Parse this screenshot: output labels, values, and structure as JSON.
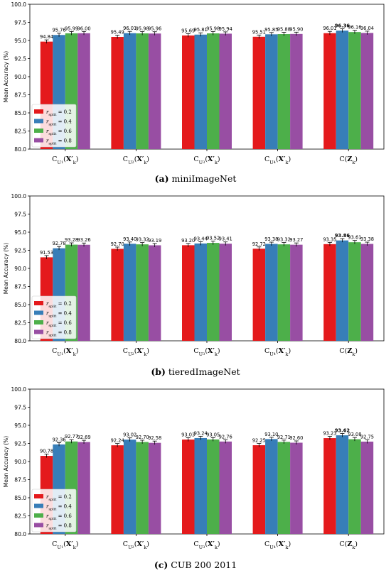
{
  "chart_data": [
    {
      "type": "bar",
      "panel_letter": "(a)",
      "caption": "miniImageNet",
      "ylabel": "Mean Accuracy (%)",
      "ylim": [
        80.0,
        100.0
      ],
      "yticks": [
        "80.0",
        "82.5",
        "85.0",
        "87.5",
        "90.0",
        "92.5",
        "95.0",
        "97.5",
        "100.0"
      ],
      "categories": [
        "C_{U1}(X'_k)",
        "C_{U2}(X'_k)",
        "C_{U3}(X'_k)",
        "C_{U4}(X'_k)",
        "C(Z_k)"
      ],
      "series": [
        {
          "name": "r_split = 0.2",
          "color": "#e41a1c",
          "values": [
            94.84,
            95.49,
            95.69,
            95.51,
            96.01
          ]
        },
        {
          "name": "r_split = 0.4",
          "color": "#377eb8",
          "values": [
            95.76,
            96.01,
            95.81,
            95.85,
            96.36
          ]
        },
        {
          "name": "r_split = 0.6",
          "color": "#4daf4a",
          "values": [
            95.99,
            95.98,
            95.98,
            95.88,
            96.16
          ]
        },
        {
          "name": "r_split = 0.8",
          "color": "#984ea3",
          "values": [
            96.0,
            95.96,
            95.94,
            95.9,
            96.04
          ]
        }
      ],
      "value_labels": [
        [
          "94.84",
          "95.49",
          "95.69",
          "95.51",
          "96.01"
        ],
        [
          "95.76",
          "96.01",
          "95.81",
          "95.85",
          "96.36"
        ],
        [
          "95.99",
          "95.98",
          "95.98",
          "95.88",
          "96.16"
        ],
        [
          "96.00",
          "95.96",
          "95.94",
          "95.90",
          "96.04"
        ]
      ],
      "best": [
        1,
        4
      ],
      "legend_position": "lower-left"
    },
    {
      "type": "bar",
      "panel_letter": "(b)",
      "caption": "tieredImageNet",
      "ylabel": "Mean Accuracy (%)",
      "ylim": [
        80.0,
        100.0
      ],
      "yticks": [
        "80.0",
        "82.5",
        "85.0",
        "87.5",
        "90.0",
        "92.5",
        "95.0",
        "97.5",
        "100.0"
      ],
      "categories": [
        "C_{U1}(X'_k)",
        "C_{U2}(X'_k)",
        "C_{U3}(X'_k)",
        "C_{U4}(X'_k)",
        "C(Z_k)"
      ],
      "series": [
        {
          "name": "r_split = 0.2",
          "color": "#e41a1c",
          "values": [
            91.53,
            92.7,
            93.2,
            92.72,
            93.35
          ]
        },
        {
          "name": "r_split = 0.4",
          "color": "#377eb8",
          "values": [
            92.78,
            93.4,
            93.44,
            93.38,
            93.86
          ]
        },
        {
          "name": "r_split = 0.6",
          "color": "#4daf4a",
          "values": [
            93.28,
            93.32,
            93.52,
            93.32,
            93.61
          ]
        },
        {
          "name": "r_split = 0.8",
          "color": "#984ea3",
          "values": [
            93.26,
            93.19,
            93.41,
            93.27,
            93.38
          ]
        }
      ],
      "value_labels": [
        [
          "91.53",
          "92.70",
          "93.20",
          "92.72",
          "93.35"
        ],
        [
          "92.78",
          "93.40",
          "93.44",
          "93.38",
          "93.86"
        ],
        [
          "93.28",
          "93.32",
          "93.52",
          "93.32",
          "93.61"
        ],
        [
          "93.26",
          "93.19",
          "93.41",
          "93.27",
          "93.38"
        ]
      ],
      "best": [
        1,
        4
      ],
      "legend_position": "lower-left"
    },
    {
      "type": "bar",
      "panel_letter": "(c)",
      "caption": "CUB 200 2011",
      "ylabel": "Mean Accuracy (%)",
      "ylim": [
        80.0,
        100.0
      ],
      "yticks": [
        "80.0",
        "82.5",
        "85.0",
        "87.5",
        "90.0",
        "92.5",
        "95.0",
        "97.5",
        "100.0"
      ],
      "categories": [
        "C_{U1}(X'_k)",
        "C_{U2}(X'_k)",
        "C_{U3}(X'_k)",
        "C_{U4}(X'_k)",
        "C(Z_k)"
      ],
      "series": [
        {
          "name": "r_split = 0.2",
          "color": "#e41a1c",
          "values": [
            90.78,
            92.24,
            93.03,
            92.25,
            93.23
          ]
        },
        {
          "name": "r_split = 0.4",
          "color": "#377eb8",
          "values": [
            92.36,
            93.02,
            93.24,
            93.1,
            93.62
          ]
        },
        {
          "name": "r_split = 0.6",
          "color": "#4daf4a",
          "values": [
            92.77,
            92.7,
            93.05,
            92.71,
            93.08
          ]
        },
        {
          "name": "r_split = 0.8",
          "color": "#984ea3",
          "values": [
            92.69,
            92.58,
            92.76,
            92.6,
            92.75
          ]
        }
      ],
      "value_labels": [
        [
          "90.78",
          "92.24",
          "93.03",
          "92.25",
          "93.23"
        ],
        [
          "92.36",
          "93.02",
          "93.24",
          "93.10",
          "93.62"
        ],
        [
          "92.77",
          "92.70",
          "93.05",
          "92.71",
          "93.08"
        ],
        [
          "92.69",
          "92.58",
          "92.76",
          "92.60",
          "92.75"
        ]
      ],
      "best": [
        1,
        4
      ],
      "legend_position": "lower-left"
    }
  ]
}
